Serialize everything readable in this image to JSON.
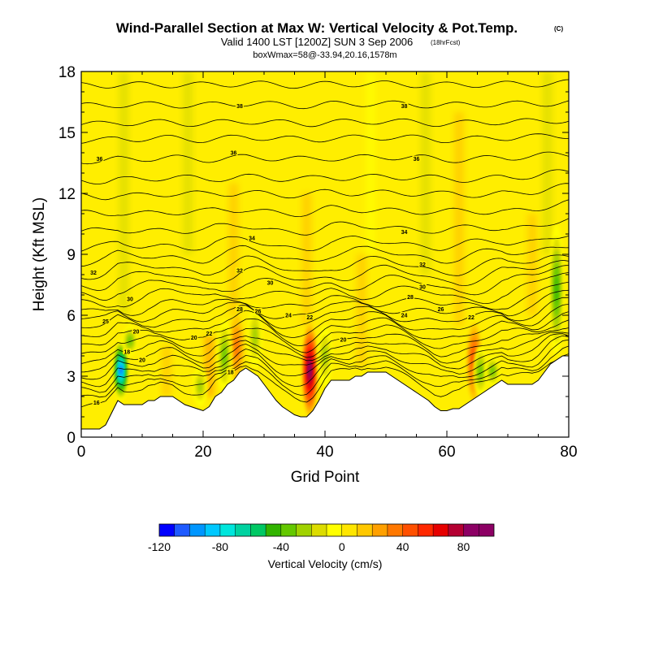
{
  "chart_data": {
    "type": "heatmap",
    "title": "Wind-Parallel Section at Max W: Vertical Velocity & Pot.Temp.",
    "title_mark": "(C)",
    "subtitle": "Valid 1400 LST [1200Z] SUN 3 Sep 2006",
    "subtitle_note": "(18hrFcst)",
    "subtitle2": "boxWmax=58@-33.94,20.16,1578m",
    "xlabel": "Grid Point",
    "ylabel": "Height (Kft MSL)",
    "xlim": [
      0,
      80
    ],
    "ylim": [
      0,
      18
    ],
    "xticks": [
      "0",
      "20",
      "40",
      "60",
      "80"
    ],
    "yticks": [
      "0",
      "3",
      "6",
      "9",
      "12",
      "15",
      "18"
    ],
    "colorbar": {
      "label": "Vertical Velocity (cm/s)",
      "ticks": [
        "-120",
        "-80",
        "-40",
        "0",
        "40",
        "80"
      ],
      "range": [
        -120,
        100
      ],
      "step": 10,
      "colors": [
        "#0000ff",
        "#1e5aff",
        "#0096ff",
        "#00c8ff",
        "#00e6dc",
        "#00d2a0",
        "#00c864",
        "#32b400",
        "#64c800",
        "#a0d200",
        "#dcdc00",
        "#ffff00",
        "#ffe600",
        "#ffc800",
        "#ffa000",
        "#ff7800",
        "#ff5000",
        "#ff2800",
        "#e60000",
        "#b40032",
        "#8c0064"
      ]
    },
    "terrain": [
      [
        0,
        0.4
      ],
      [
        2,
        0.4
      ],
      [
        3,
        0.4
      ],
      [
        4,
        0.6
      ],
      [
        5,
        1.2
      ],
      [
        6,
        1.8
      ],
      [
        7,
        1.6
      ],
      [
        8,
        1.6
      ],
      [
        9,
        1.6
      ],
      [
        10,
        1.6
      ],
      [
        11,
        1.8
      ],
      [
        12,
        1.8
      ],
      [
        13,
        2.0
      ],
      [
        14,
        2.0
      ],
      [
        15,
        2.0
      ],
      [
        16,
        1.8
      ],
      [
        17,
        1.6
      ],
      [
        18,
        1.5
      ],
      [
        19,
        1.4
      ],
      [
        20,
        1.3
      ],
      [
        21,
        1.5
      ],
      [
        22,
        2.0
      ],
      [
        23,
        2.2
      ],
      [
        24,
        2.6
      ],
      [
        25,
        2.8
      ],
      [
        26,
        3.2
      ],
      [
        27,
        3.4
      ],
      [
        28,
        3.2
      ],
      [
        29,
        3.0
      ],
      [
        30,
        2.6
      ],
      [
        31,
        2.2
      ],
      [
        32,
        1.8
      ],
      [
        33,
        1.5
      ],
      [
        34,
        1.3
      ],
      [
        35,
        1.1
      ],
      [
        36,
        1.0
      ],
      [
        37,
        1.0
      ],
      [
        38,
        1.3
      ],
      [
        39,
        1.8
      ],
      [
        40,
        2.4
      ],
      [
        41,
        2.8
      ],
      [
        42,
        2.8
      ],
      [
        43,
        2.8
      ],
      [
        44,
        2.8
      ],
      [
        45,
        3.0
      ],
      [
        46,
        3.0
      ],
      [
        47,
        3.2
      ],
      [
        48,
        3.2
      ],
      [
        49,
        3.2
      ],
      [
        50,
        3.2
      ],
      [
        51,
        3.0
      ],
      [
        52,
        2.8
      ],
      [
        53,
        2.6
      ],
      [
        54,
        2.4
      ],
      [
        55,
        2.2
      ],
      [
        56,
        2.0
      ],
      [
        57,
        1.8
      ],
      [
        58,
        1.5
      ],
      [
        59,
        1.3
      ],
      [
        60,
        1.3
      ],
      [
        61,
        1.4
      ],
      [
        62,
        1.4
      ],
      [
        63,
        1.6
      ],
      [
        64,
        1.8
      ],
      [
        65,
        2.0
      ],
      [
        66,
        2.2
      ],
      [
        67,
        2.4
      ],
      [
        68,
        2.6
      ],
      [
        69,
        2.8
      ],
      [
        70,
        2.6
      ],
      [
        71,
        2.6
      ],
      [
        72,
        2.6
      ],
      [
        73,
        2.6
      ],
      [
        74,
        2.6
      ],
      [
        75,
        2.8
      ],
      [
        76,
        3.2
      ],
      [
        77,
        3.6
      ],
      [
        78,
        3.8
      ],
      [
        79,
        4.0
      ],
      [
        80,
        4.0
      ]
    ],
    "updrafts": [
      {
        "x": 37.5,
        "z_bottom": 1.0,
        "z_top": 5.6,
        "w": 90
      },
      {
        "x": 64.5,
        "z_bottom": 1.8,
        "z_top": 5.6,
        "w": 50
      },
      {
        "x": 25.5,
        "z_bottom": 2.8,
        "z_top": 6.0,
        "w": 35
      },
      {
        "x": 21.0,
        "z_bottom": 2.0,
        "z_top": 5.0,
        "w": 20
      },
      {
        "x": 14.0,
        "z_bottom": 2.0,
        "z_top": 4.5,
        "w": 18
      },
      {
        "x": 37.0,
        "z_bottom": 5.5,
        "z_top": 12.0,
        "w": 15
      },
      {
        "x": 25.0,
        "z_bottom": 6.0,
        "z_top": 12.5,
        "w": 12
      },
      {
        "x": 62.0,
        "z_bottom": 5.5,
        "z_top": 16.0,
        "w": 10
      },
      {
        "x": 46.0,
        "z_bottom": 3.5,
        "z_top": 9.0,
        "w": 10
      },
      {
        "x": 74.0,
        "z_bottom": 6.0,
        "z_top": 11.0,
        "w": 12
      }
    ],
    "downdrafts": [
      {
        "x": 6.5,
        "z_bottom": 1.8,
        "z_top": 4.8,
        "w": -110
      },
      {
        "x": 8.0,
        "z_bottom": 4.0,
        "z_top": 5.5,
        "w": -40
      },
      {
        "x": 23.5,
        "z_bottom": 2.2,
        "z_top": 5.8,
        "w": -40
      },
      {
        "x": 19.5,
        "z_bottom": 1.5,
        "z_top": 3.5,
        "w": -30
      },
      {
        "x": 28.5,
        "z_bottom": 3.4,
        "z_top": 6.5,
        "w": -30
      },
      {
        "x": 40.0,
        "z_bottom": 2.5,
        "z_top": 5.5,
        "w": -30
      },
      {
        "x": 65.5,
        "z_bottom": 2.0,
        "z_top": 4.5,
        "w": -45
      },
      {
        "x": 67.5,
        "z_bottom": 2.5,
        "z_top": 4.0,
        "w": -40
      },
      {
        "x": 78.0,
        "z_bottom": 4.0,
        "z_top": 10.5,
        "w": -50
      },
      {
        "x": 76.5,
        "z_bottom": 9.0,
        "z_top": 18.0,
        "w": -20
      },
      {
        "x": 7.0,
        "z_bottom": 6.0,
        "z_top": 18.0,
        "w": -12
      },
      {
        "x": 17.5,
        "z_bottom": 9.0,
        "z_top": 18.0,
        "w": -12
      },
      {
        "x": 56.5,
        "z_bottom": 8.0,
        "z_top": 18.0,
        "w": -15
      },
      {
        "x": 47.5,
        "z_bottom": 9.0,
        "z_top": 18.0,
        "w": -10
      }
    ],
    "isentropes": [
      {
        "base": 1.2,
        "label": "16"
      },
      {
        "base": 1.6,
        "label": ""
      },
      {
        "base": 2.0,
        "label": ""
      },
      {
        "base": 2.4,
        "label": "20"
      },
      {
        "base": 2.8,
        "label": ""
      },
      {
        "base": 3.2,
        "label": ""
      },
      {
        "base": 3.6,
        "label": ""
      },
      {
        "base": 4.0,
        "label": "22"
      },
      {
        "base": 4.4,
        "label": ""
      },
      {
        "base": 4.8,
        "label": ""
      },
      {
        "base": 5.2,
        "label": "24"
      },
      {
        "base": 5.6,
        "label": "26"
      },
      {
        "base": 6.0,
        "label": "28"
      },
      {
        "base": 6.5,
        "label": ""
      },
      {
        "base": 7.0,
        "label": "30"
      },
      {
        "base": 7.5,
        "label": ""
      },
      {
        "base": 8.0,
        "label": "32"
      },
      {
        "base": 8.6,
        "label": ""
      },
      {
        "base": 9.2,
        "label": "34"
      },
      {
        "base": 10.0,
        "label": ""
      },
      {
        "base": 10.9,
        "label": ""
      },
      {
        "base": 11.8,
        "label": ""
      },
      {
        "base": 12.6,
        "label": ""
      },
      {
        "base": 13.6,
        "label": "36"
      },
      {
        "base": 14.6,
        "label": ""
      },
      {
        "base": 15.4,
        "label": ""
      },
      {
        "base": 16.3,
        "label": "38"
      },
      {
        "base": 17.3,
        "label": ""
      }
    ],
    "contour_labels": [
      {
        "x": 2.5,
        "z": 1.7,
        "text": "16"
      },
      {
        "x": 7.5,
        "z": 4.2,
        "text": "18"
      },
      {
        "x": 10.0,
        "z": 3.8,
        "text": "20"
      },
      {
        "x": 18.5,
        "z": 4.9,
        "text": "20"
      },
      {
        "x": 24.5,
        "z": 3.2,
        "text": "18"
      },
      {
        "x": 21.0,
        "z": 5.1,
        "text": "22"
      },
      {
        "x": 9.0,
        "z": 5.2,
        "text": "20"
      },
      {
        "x": 4.0,
        "z": 5.7,
        "text": "25"
      },
      {
        "x": 8.0,
        "z": 6.8,
        "text": "30"
      },
      {
        "x": 2.0,
        "z": 8.1,
        "text": "32"
      },
      {
        "x": 26.0,
        "z": 6.3,
        "text": "28"
      },
      {
        "x": 29.0,
        "z": 6.2,
        "text": "26"
      },
      {
        "x": 34.0,
        "z": 6.0,
        "text": "24"
      },
      {
        "x": 37.5,
        "z": 5.9,
        "text": "22"
      },
      {
        "x": 43.0,
        "z": 4.8,
        "text": "20"
      },
      {
        "x": 26.0,
        "z": 8.2,
        "text": "32"
      },
      {
        "x": 31.0,
        "z": 7.6,
        "text": "30"
      },
      {
        "x": 28.0,
        "z": 9.8,
        "text": "34"
      },
      {
        "x": 53.0,
        "z": 10.1,
        "text": "34"
      },
      {
        "x": 56.0,
        "z": 8.5,
        "text": "32"
      },
      {
        "x": 56.0,
        "z": 7.4,
        "text": "30"
      },
      {
        "x": 54.0,
        "z": 6.9,
        "text": "28"
      },
      {
        "x": 59.0,
        "z": 6.3,
        "text": "26"
      },
      {
        "x": 53.0,
        "z": 6.0,
        "text": "24"
      },
      {
        "x": 64.0,
        "z": 5.9,
        "text": "22"
      },
      {
        "x": 3.0,
        "z": 13.7,
        "text": "36"
      },
      {
        "x": 25.0,
        "z": 14.0,
        "text": "36"
      },
      {
        "x": 55.0,
        "z": 13.7,
        "text": "36"
      },
      {
        "x": 26.0,
        "z": 16.3,
        "text": "38"
      },
      {
        "x": 53.0,
        "z": 16.3,
        "text": "38"
      }
    ]
  }
}
